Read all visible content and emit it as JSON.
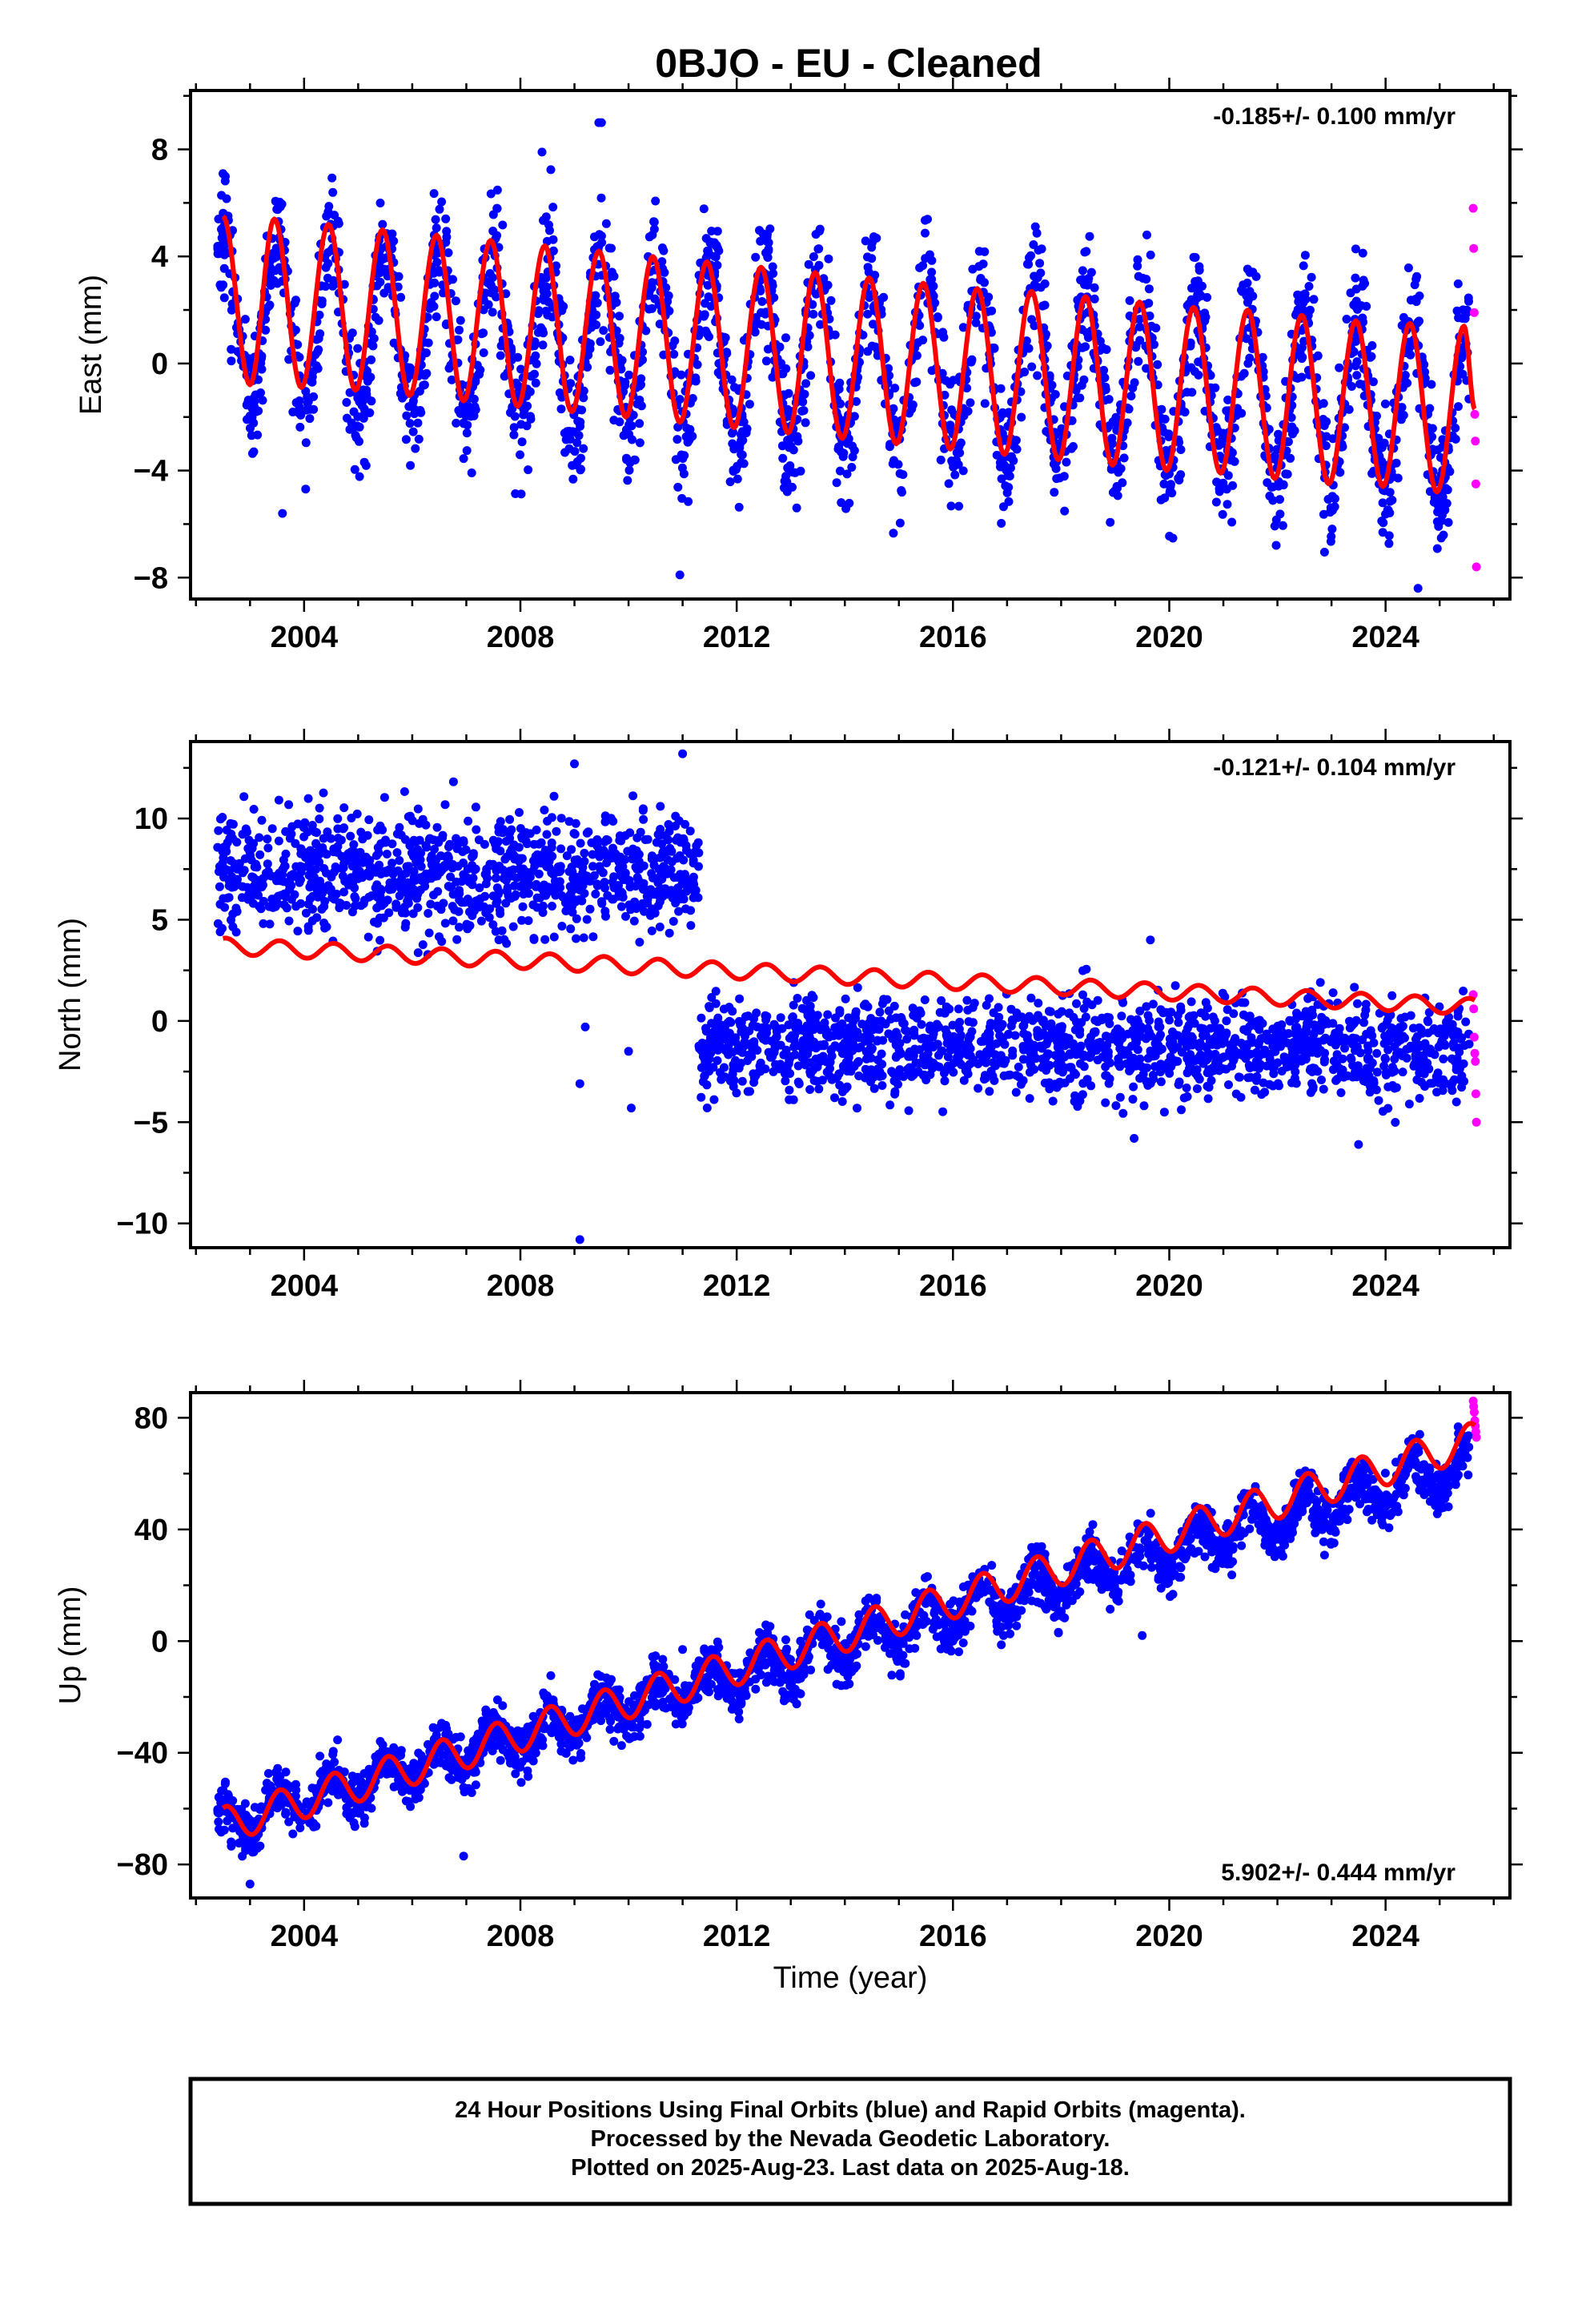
{
  "title": "0BJO  - EU - Cleaned",
  "footer": {
    "line1": "24 Hour Positions Using Final Orbits (blue) and Rapid Orbits (magenta).",
    "line2": "Processed by the Nevada Geodetic Laboratory.",
    "line3": "Plotted on 2025-Aug-23. Last data on 2025-Aug-18."
  },
  "colors": {
    "final_orbits": "#0000ff",
    "rapid_orbits": "#ff00ff",
    "model_fit": "#ff0000",
    "frame": "#000000"
  },
  "chart_data": [
    {
      "type": "scatter",
      "ylabel": "East (mm)",
      "xlabel": "",
      "rate_label": "-0.185+/- 0.100 mm/yr",
      "rate_position": "top-right",
      "xlim": [
        2001.9,
        2026.3
      ],
      "ylim": [
        -8.8,
        10.2
      ],
      "x_ticks": [
        2004,
        2008,
        2012,
        2016,
        2020,
        2024
      ],
      "y_ticks": [
        -8,
        -4,
        0,
        4,
        8
      ],
      "grid": false,
      "series": [
        {
          "name": "Final Orbits",
          "color": "#0000ff",
          "kind": "daily positions (scatter)",
          "x_range": [
            2002.4,
            2025.55
          ],
          "trend_y": [
            1.8,
            -1.7
          ],
          "seasonal_amplitude": 3.2,
          "scatter_sd": 1.2,
          "spikes": [
            [
              2008.4,
              7.9
            ],
            [
              2009.45,
              9.0
            ],
            [
              2009.5,
              9.0
            ],
            [
              2010.95,
              -7.9
            ],
            [
              2003.6,
              -5.6
            ],
            [
              2024.6,
              -8.4
            ]
          ]
        },
        {
          "name": "Rapid Orbits",
          "color": "#ff00ff",
          "kind": "daily positions (scatter)",
          "x": [
            2025.62,
            2025.63,
            2025.64,
            2025.65,
            2025.66,
            2025.67,
            2025.68
          ],
          "y": [
            5.8,
            4.3,
            1.9,
            -1.9,
            -2.9,
            -4.5,
            -7.6
          ]
        },
        {
          "name": "Model fit",
          "color": "#ff0000",
          "kind": "trend + annual + semiannual",
          "x": [
            2002.5,
            2003.0,
            2003.45,
            2003.95,
            2004.45,
            2004.95,
            2005.45,
            2005.95,
            2006.45,
            2006.95,
            2007.45,
            2007.95,
            2008.45,
            2008.95,
            2009.45,
            2009.95,
            2010.45,
            2010.95,
            2011.45,
            2011.95,
            2012.45,
            2012.95,
            2013.45,
            2013.95,
            2014.45,
            2014.95,
            2015.45,
            2015.95,
            2016.45,
            2016.95,
            2017.45,
            2017.95,
            2018.45,
            2018.95,
            2019.45,
            2019.95,
            2020.45,
            2020.95,
            2021.45,
            2021.95,
            2022.45,
            2022.95,
            2023.45,
            2023.95,
            2024.45,
            2024.95,
            2025.45,
            2025.65
          ],
          "y": [
            5.5,
            -0.8,
            5.4,
            -0.9,
            5.2,
            -1.0,
            5.0,
            -1.2,
            4.8,
            -1.4,
            4.6,
            -1.6,
            4.4,
            -1.8,
            4.2,
            -2.0,
            4.0,
            -2.2,
            3.8,
            -2.4,
            3.6,
            -2.6,
            3.4,
            -2.8,
            3.2,
            -3.0,
            3.0,
            -3.2,
            2.8,
            -3.4,
            2.7,
            -3.6,
            2.5,
            -3.8,
            2.3,
            -4.0,
            2.1,
            -4.1,
            2.0,
            -4.3,
            1.8,
            -4.5,
            1.6,
            -4.6,
            1.5,
            -4.8,
            1.4,
            -1.7
          ]
        }
      ]
    },
    {
      "type": "scatter",
      "ylabel": "North (mm)",
      "xlabel": "",
      "rate_label": "-0.121+/- 0.104 mm/yr",
      "rate_position": "top-right",
      "xlim": [
        2001.9,
        2026.3
      ],
      "ylim": [
        -11.2,
        13.8
      ],
      "x_ticks": [
        2004,
        2008,
        2012,
        2016,
        2020,
        2024
      ],
      "y_ticks": [
        -10,
        -5,
        0,
        5,
        10
      ],
      "grid": false,
      "series": [
        {
          "name": "Final Orbits",
          "color": "#0000ff",
          "kind": "daily positions (scatter)",
          "segments": [
            {
              "x_range": [
                2002.4,
                2011.3
              ],
              "mean": 7.4,
              "sd": 1.45
            },
            {
              "x_range": [
                2011.3,
                2025.55
              ],
              "mean_start": -1.2,
              "mean_end": -1.4,
              "sd": 1.2
            }
          ],
          "spikes": [
            [
              2009.1,
              -10.8
            ],
            [
              2009.0,
              12.7
            ],
            [
              2011.0,
              13.2
            ],
            [
              2009.1,
              -3.1
            ],
            [
              2009.2,
              -0.3
            ],
            [
              2010.05,
              -4.3
            ],
            [
              2010.0,
              -1.5
            ],
            [
              2019.35,
              -5.8
            ],
            [
              2019.65,
              4.0
            ],
            [
              2023.5,
              -6.1
            ]
          ]
        },
        {
          "name": "Rapid Orbits",
          "color": "#ff00ff",
          "kind": "daily positions (scatter)",
          "x": [
            2025.62,
            2025.63,
            2025.64,
            2025.65,
            2025.66,
            2025.67,
            2025.68
          ],
          "y": [
            1.3,
            0.6,
            -0.8,
            -1.6,
            -2.0,
            -3.6,
            -5.0
          ]
        },
        {
          "name": "Model fit",
          "color": "#ff0000",
          "kind": "trend + annual + semiannual",
          "x": [
            2002.5,
            2025.65
          ],
          "y": [
            3.7,
            0.7
          ],
          "seasonal_amplitude": 0.4
        }
      ]
    },
    {
      "type": "scatter",
      "ylabel": "Up (mm)",
      "xlabel": "Time (year)",
      "rate_label": "5.902+/- 0.444 mm/yr",
      "rate_position": "bottom-right",
      "xlim": [
        2001.9,
        2026.3
      ],
      "ylim": [
        -92,
        89
      ],
      "x_ticks": [
        2004,
        2008,
        2012,
        2016,
        2020,
        2024
      ],
      "y_ticks": [
        -80,
        -40,
        0,
        40,
        80
      ],
      "grid": false,
      "series": [
        {
          "name": "Final Orbits",
          "color": "#0000ff",
          "kind": "daily positions (scatter)",
          "x_range": [
            2002.4,
            2025.55
          ],
          "trend_y": [
            -65.5,
            63.5
          ],
          "seasonal_amplitude": 6.5,
          "scatter_sd": 4.5,
          "spikes": [
            [
              2003.0,
              -87
            ],
            [
              2006.95,
              -77
            ],
            [
              2019.5,
              2
            ],
            [
              2011.0,
              -3
            ]
          ]
        },
        {
          "name": "Rapid Orbits",
          "color": "#ff00ff",
          "kind": "daily positions (scatter)",
          "x": [
            2025.62,
            2025.63,
            2025.64,
            2025.65,
            2025.66,
            2025.67,
            2025.68
          ],
          "y": [
            86,
            84,
            82,
            79,
            77,
            75,
            73
          ]
        },
        {
          "name": "Model fit",
          "color": "#ff0000",
          "kind": "trend + annual + semiannual",
          "x": [
            2002.5,
            2025.65
          ],
          "y": [
            -66,
            72
          ],
          "seasonal_amplitude": 6.5
        }
      ]
    }
  ]
}
